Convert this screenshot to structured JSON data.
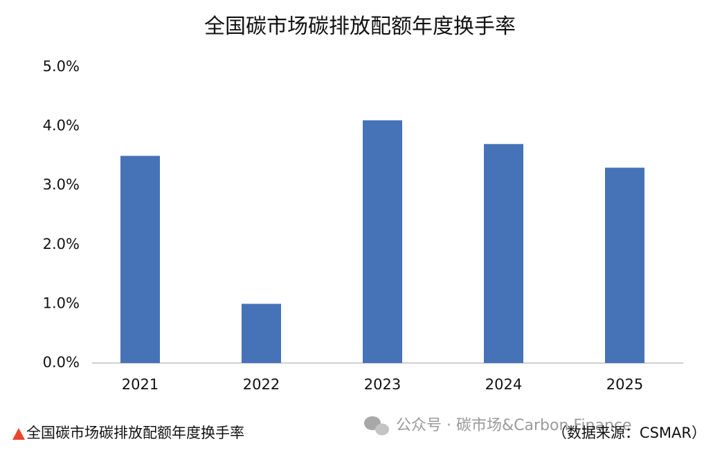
{
  "chart_data": {
    "type": "bar",
    "title": "全国碳市场碳排放配额年度换手率",
    "categories": [
      "2021",
      "2022",
      "2023",
      "2024",
      "2025"
    ],
    "values": [
      3.5,
      1.0,
      4.1,
      3.7,
      3.3
    ],
    "color": "#4672b8",
    "ylim": [
      0,
      5
    ],
    "yticks": [
      {
        "value": 0,
        "label": "0.0%"
      },
      {
        "value": 1,
        "label": "1.0%"
      },
      {
        "value": 2,
        "label": "2.0%"
      },
      {
        "value": 3,
        "label": "3.0%"
      },
      {
        "value": 4,
        "label": "4.0%"
      },
      {
        "value": 5,
        "label": "5.0%"
      }
    ],
    "grid": false,
    "footnote": "全国碳市场碳排放配额年度换手率",
    "watermark": "公众号 · 碳市场&Carbon Finance",
    "source": "（数据来源：CSMAR）"
  }
}
